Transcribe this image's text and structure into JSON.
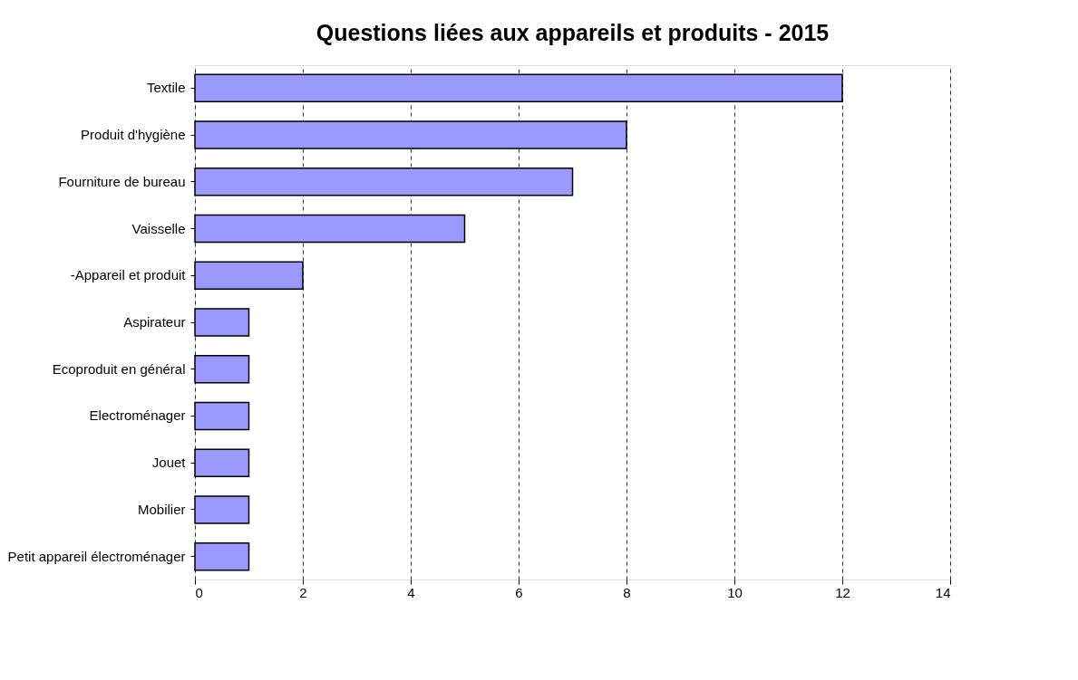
{
  "chart_data": {
    "type": "bar",
    "orientation": "horizontal",
    "title": "Questions liées aux appareils et produits - 2015",
    "categories": [
      "Textile",
      "Produit d'hygiène",
      "Fourniture de bureau",
      "Vaisselle",
      "-Appareil et produit",
      "Aspirateur",
      "Ecoproduit en général",
      "Electroménager",
      "Jouet",
      "Mobilier",
      "Petit appareil électroménager"
    ],
    "values": [
      12,
      8,
      7,
      5,
      2,
      1,
      1,
      1,
      1,
      1,
      1
    ],
    "color": "#9999ff",
    "xlim": [
      0,
      14
    ],
    "xticks": [
      0,
      2,
      4,
      6,
      8,
      10,
      12,
      14
    ],
    "grid": "x"
  }
}
